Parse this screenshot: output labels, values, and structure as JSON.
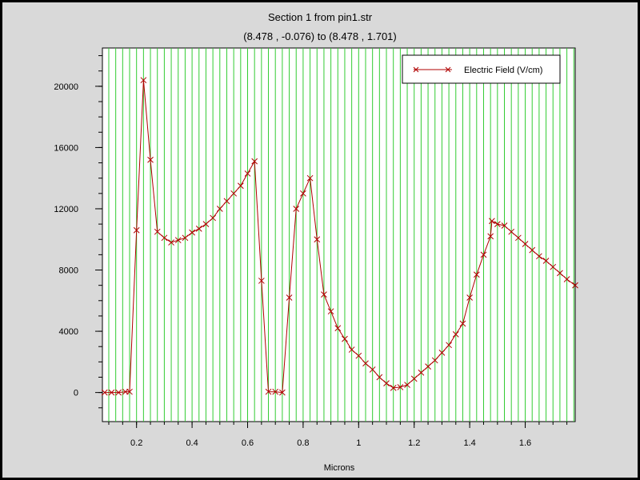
{
  "colors": {
    "background": "#d9d9d9",
    "plot_background": "#ffffff",
    "grid": "#33cc33",
    "series_line": "#b00000",
    "marker": "#b00000"
  },
  "chart_data": {
    "type": "line",
    "title": "Section 1 from pin1.str",
    "subtitle": "(8.478 , -0.076) to (8.478 , 1.701)",
    "xlabel": "Microns",
    "ylabel": "",
    "xlim": [
      0.077,
      1.78
    ],
    "ylim": [
      -1900,
      22500
    ],
    "xticks": [
      0.2,
      0.4,
      0.6,
      0.8,
      1.0,
      1.2,
      1.4,
      1.6
    ],
    "xtick_labels": [
      "0.2",
      "0.4",
      "0.6",
      "0.8",
      "1",
      "1.2",
      "1.4",
      "1.6"
    ],
    "yticks": [
      0,
      4000,
      8000,
      12000,
      16000,
      20000
    ],
    "ytick_labels": [
      "0",
      "4000",
      "8000",
      "12000",
      "16000",
      "20000"
    ],
    "grid": "vertical",
    "legend_position": "top-right",
    "series": [
      {
        "name": "Electric Field (V/cm)",
        "marker": "x",
        "x": [
          0.085,
          0.11,
          0.135,
          0.16,
          0.175,
          0.2,
          0.225,
          0.25,
          0.275,
          0.3,
          0.325,
          0.35,
          0.375,
          0.4,
          0.425,
          0.45,
          0.475,
          0.5,
          0.525,
          0.55,
          0.575,
          0.6,
          0.625,
          0.65,
          0.675,
          0.7,
          0.725,
          0.75,
          0.775,
          0.8,
          0.825,
          0.85,
          0.875,
          0.9,
          0.925,
          0.95,
          0.975,
          1.0,
          1.025,
          1.05,
          1.075,
          1.1,
          1.125,
          1.15,
          1.175,
          1.2,
          1.225,
          1.25,
          1.275,
          1.3,
          1.325,
          1.35,
          1.375,
          1.4,
          1.425,
          1.45,
          1.475,
          1.48,
          1.5,
          1.525,
          1.55,
          1.575,
          1.6,
          1.625,
          1.65,
          1.675,
          1.7,
          1.725,
          1.75,
          1.78
        ],
        "y": [
          0,
          0,
          0,
          50,
          50,
          10600,
          20400,
          15200,
          10500,
          10100,
          9800,
          9950,
          10100,
          10450,
          10700,
          11000,
          11400,
          12000,
          12500,
          13000,
          13500,
          14300,
          15100,
          7300,
          50,
          50,
          0,
          6200,
          12000,
          13000,
          14000,
          10000,
          6400,
          5300,
          4200,
          3500,
          2800,
          2400,
          1900,
          1500,
          1000,
          600,
          300,
          350,
          500,
          900,
          1300,
          1700,
          2100,
          2600,
          3100,
          3800,
          4500,
          6200,
          7700,
          9000,
          10200,
          11200,
          11000,
          10900,
          10500,
          10100,
          9700,
          9300,
          8900,
          8600,
          8200,
          7800,
          7400,
          7000
        ]
      }
    ]
  }
}
